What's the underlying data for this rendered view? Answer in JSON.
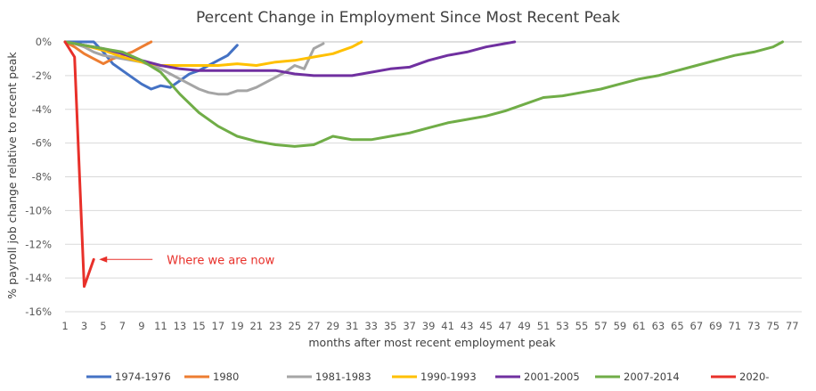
{
  "chart_data": {
    "type": "line",
    "title": "Percent Change in Employment Since Most Recent Peak",
    "xlabel": "months after most recent employment peak",
    "ylabel": "% payroll job change relative to recent peak",
    "xlim": [
      1,
      78
    ],
    "ylim": [
      -16,
      0
    ],
    "x_ticks": [
      1,
      3,
      5,
      7,
      9,
      11,
      13,
      15,
      17,
      19,
      21,
      23,
      25,
      27,
      29,
      31,
      33,
      35,
      37,
      39,
      41,
      43,
      45,
      47,
      49,
      51,
      53,
      55,
      57,
      59,
      61,
      63,
      65,
      67,
      69,
      71,
      73,
      75,
      77
    ],
    "y_ticks": [
      0,
      -2,
      -4,
      -6,
      -8,
      -10,
      -12,
      -14,
      -16
    ],
    "y_tick_labels": [
      "0%",
      "-2%",
      "-4%",
      "-6%",
      "-8%",
      "-10%",
      "-12%",
      "-14%",
      "-16%"
    ],
    "grid": "horizontal",
    "legend_position": "bottom",
    "series": [
      {
        "name": "1974-1976",
        "color": "#4472c4",
        "x": [
          1,
          2,
          3,
          4,
          5,
          6,
          7,
          8,
          9,
          10,
          11,
          12,
          13,
          14,
          15,
          16,
          17,
          18,
          19
        ],
        "y": [
          0,
          0,
          0,
          0,
          -0.6,
          -1.3,
          -1.7,
          -2.1,
          -2.5,
          -2.8,
          -2.6,
          -2.7,
          -2.3,
          -1.9,
          -1.7,
          -1.4,
          -1.1,
          -0.8,
          -0.2
        ]
      },
      {
        "name": "1980",
        "color": "#ed7d31",
        "x": [
          1,
          2,
          3,
          4,
          5,
          6,
          7,
          8,
          9,
          10
        ],
        "y": [
          0,
          -0.3,
          -0.7,
          -1.0,
          -1.3,
          -1.0,
          -0.8,
          -0.6,
          -0.3,
          0
        ]
      },
      {
        "name": "1981-1983",
        "color": "#a5a5a5",
        "x": [
          1,
          2,
          3,
          4,
          5,
          6,
          7,
          8,
          9,
          10,
          11,
          12,
          13,
          14,
          15,
          16,
          17,
          18,
          19,
          20,
          21,
          22,
          23,
          24,
          25,
          26,
          27,
          28
        ],
        "y": [
          0,
          -0.1,
          -0.3,
          -0.6,
          -0.8,
          -0.9,
          -1.0,
          -1.1,
          -1.2,
          -1.4,
          -1.6,
          -1.9,
          -2.2,
          -2.5,
          -2.8,
          -3.0,
          -3.1,
          -3.1,
          -2.9,
          -2.9,
          -2.7,
          -2.4,
          -2.1,
          -1.8,
          -1.4,
          -1.6,
          -0.4,
          -0.1
        ]
      },
      {
        "name": "1990-1993",
        "color": "#ffc000",
        "x": [
          1,
          3,
          5,
          7,
          9,
          11,
          13,
          15,
          17,
          19,
          21,
          23,
          25,
          27,
          29,
          31,
          32
        ],
        "y": [
          0,
          -0.2,
          -0.5,
          -0.9,
          -1.2,
          -1.4,
          -1.4,
          -1.4,
          -1.4,
          -1.3,
          -1.4,
          -1.2,
          -1.1,
          -0.9,
          -0.7,
          -0.3,
          0
        ]
      },
      {
        "name": "2001-2005",
        "color": "#7030a0",
        "x": [
          1,
          3,
          5,
          7,
          9,
          11,
          13,
          15,
          17,
          19,
          21,
          23,
          25,
          27,
          29,
          31,
          33,
          35,
          37,
          39,
          41,
          43,
          45,
          47,
          48
        ],
        "y": [
          0,
          -0.2,
          -0.4,
          -0.7,
          -1.1,
          -1.4,
          -1.6,
          -1.7,
          -1.7,
          -1.7,
          -1.7,
          -1.7,
          -1.9,
          -2.0,
          -2.0,
          -2.0,
          -1.8,
          -1.6,
          -1.5,
          -1.1,
          -0.8,
          -0.6,
          -0.3,
          -0.1,
          0
        ]
      },
      {
        "name": "2007-2014",
        "color": "#70ad47",
        "x": [
          1,
          3,
          5,
          7,
          9,
          11,
          13,
          15,
          17,
          19,
          21,
          23,
          25,
          27,
          29,
          31,
          33,
          35,
          37,
          39,
          41,
          43,
          45,
          47,
          49,
          51,
          53,
          55,
          57,
          59,
          61,
          63,
          65,
          67,
          69,
          71,
          73,
          75,
          76
        ],
        "y": [
          0,
          -0.2,
          -0.4,
          -0.6,
          -1.1,
          -1.8,
          -3.1,
          -4.2,
          -5.0,
          -5.6,
          -5.9,
          -6.1,
          -6.2,
          -6.1,
          -5.6,
          -5.8,
          -5.8,
          -5.6,
          -5.4,
          -5.1,
          -4.8,
          -4.6,
          -4.4,
          -4.1,
          -3.7,
          -3.3,
          -3.2,
          -3.0,
          -2.8,
          -2.5,
          -2.2,
          -2.0,
          -1.7,
          -1.4,
          -1.1,
          -0.8,
          -0.6,
          -0.3,
          0
        ]
      },
      {
        "name": "2020-",
        "color": "#e8302a",
        "x": [
          1,
          2,
          3,
          4
        ],
        "y": [
          0,
          -0.9,
          -14.5,
          -12.9
        ]
      }
    ],
    "annotation": {
      "text": "Where we are now",
      "x": 4,
      "y": -12.9
    }
  }
}
